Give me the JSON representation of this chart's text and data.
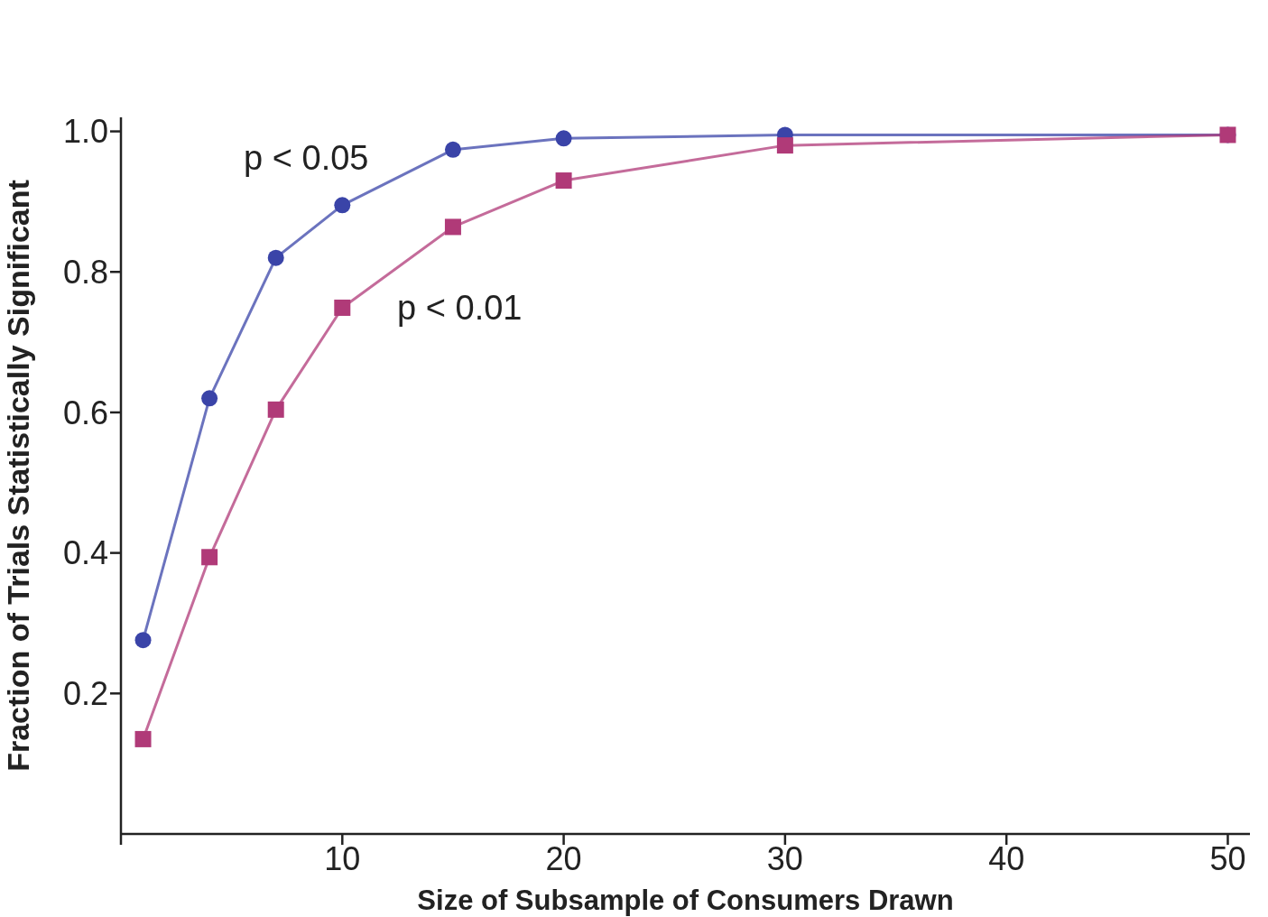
{
  "chart_data": {
    "type": "line",
    "xlabel": "Size of Subsample of Consumers Drawn",
    "ylabel": "Fraction of Trials Statistically Significant",
    "x": [
      1,
      4,
      7,
      10,
      15,
      20,
      30,
      50
    ],
    "series": [
      {
        "name": "p < 0.05",
        "color": "#3a44a8",
        "values": [
          0.276,
          0.62,
          0.82,
          0.895,
          0.974,
          0.99,
          0.995,
          0.995
        ],
        "marker": "circle"
      },
      {
        "name": "p < 0.01",
        "color": "#b03a78",
        "values": [
          0.135,
          0.394,
          0.604,
          0.749,
          0.864,
          0.93,
          0.98,
          0.995
        ],
        "marker": "square"
      }
    ],
    "xlim": [
      0,
      51
    ],
    "xticks": [
      {
        "value": 0,
        "label": null
      },
      10,
      20,
      30,
      40,
      50
    ],
    "ylim": [
      0,
      1.02
    ],
    "yticks": [
      0.2,
      0.4,
      0.6,
      0.8,
      {
        "value": 1,
        "label": "1.0"
      }
    ],
    "line_style": "solid"
  }
}
